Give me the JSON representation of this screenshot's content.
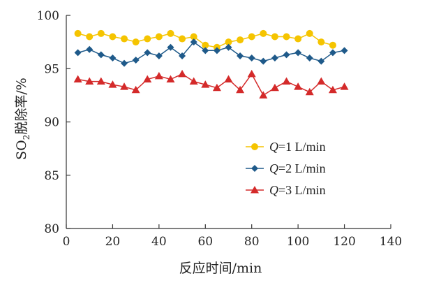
{
  "chart_data": {
    "type": "line",
    "xlabel": "反应时间/min",
    "ylabel_main": "SO",
    "ylabel_sub": "2",
    "ylabel_rest": "脱除率/%",
    "xlim": [
      0,
      140
    ],
    "ylim": [
      80,
      100
    ],
    "xticks": [
      0,
      20,
      40,
      60,
      80,
      100,
      120,
      140
    ],
    "yticks": [
      80,
      85,
      90,
      95,
      100
    ],
    "legend_position": "bottom-right",
    "grid": false,
    "series": [
      {
        "name_var": "Q",
        "name_rest": "=1 L/min",
        "color": "#f5c400",
        "marker": "circle",
        "x": [
          5,
          10,
          15,
          20,
          25,
          30,
          35,
          40,
          45,
          50,
          55,
          60,
          65,
          70,
          75,
          80,
          85,
          90,
          95,
          100,
          105,
          110,
          115
        ],
        "y": [
          98.3,
          98.0,
          98.3,
          98.0,
          97.8,
          97.5,
          97.8,
          98.0,
          98.3,
          97.8,
          98.0,
          97.2,
          97.0,
          97.5,
          97.7,
          98.0,
          98.3,
          98.0,
          98.0,
          97.8,
          98.3,
          97.5,
          97.2
        ]
      },
      {
        "name_var": "Q",
        "name_rest": "=2 L/min",
        "color": "#1f5a8a",
        "marker": "diamond",
        "x": [
          5,
          10,
          15,
          20,
          25,
          30,
          35,
          40,
          45,
          50,
          55,
          60,
          65,
          70,
          75,
          80,
          85,
          90,
          95,
          100,
          105,
          110,
          115,
          120
        ],
        "y": [
          96.5,
          96.8,
          96.3,
          96.0,
          95.5,
          95.8,
          96.5,
          96.2,
          97.0,
          96.2,
          97.5,
          96.7,
          96.7,
          97.0,
          96.2,
          96.0,
          95.7,
          96.0,
          96.3,
          96.5,
          96.0,
          95.7,
          96.5,
          96.7
        ]
      },
      {
        "name_var": "Q",
        "name_rest": "=3 L/min",
        "color": "#d42a2a",
        "marker": "triangle",
        "x": [
          5,
          10,
          15,
          20,
          25,
          30,
          35,
          40,
          45,
          50,
          55,
          60,
          65,
          70,
          75,
          80,
          85,
          90,
          95,
          100,
          105,
          110,
          115,
          120
        ],
        "y": [
          94.0,
          93.8,
          93.8,
          93.5,
          93.3,
          93.0,
          94.0,
          94.3,
          94.0,
          94.5,
          93.8,
          93.5,
          93.2,
          94.0,
          93.0,
          94.5,
          92.5,
          93.2,
          93.8,
          93.3,
          92.8,
          93.8,
          93.0,
          93.3
        ]
      }
    ]
  }
}
